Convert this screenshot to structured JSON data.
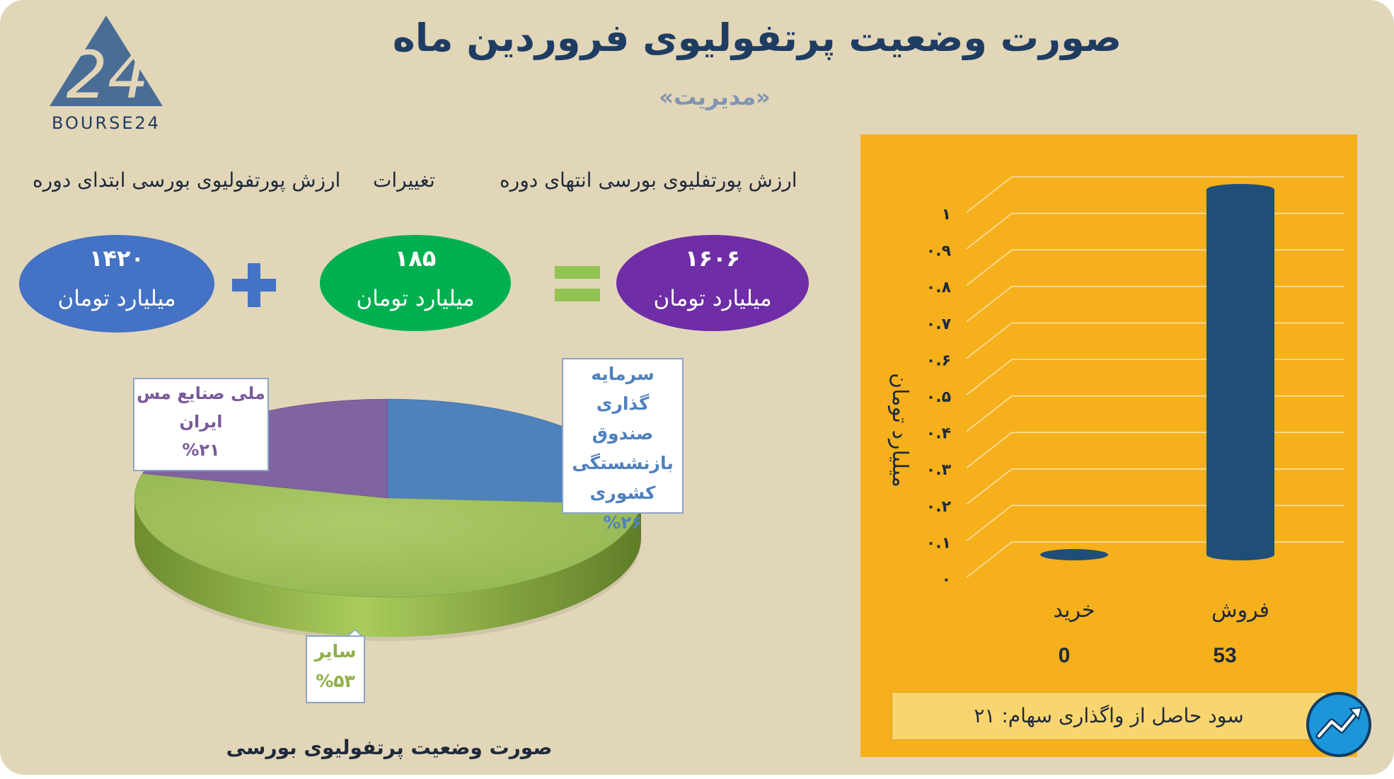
{
  "header": {
    "title": "صورت وضعیت پرتفولیوی فروردین ماه",
    "subtitle": "«مدیریت»"
  },
  "logo": {
    "text": "BOURSE24",
    "mark": "24"
  },
  "summary": {
    "labels": {
      "end": "ارزش پورتفلیوی بورسی انتهای دوره",
      "change": "تغییرات",
      "start": "ارزش پورتفولیوی بورسی ابتدای دوره"
    },
    "end": {
      "value": "۱۶۰۶",
      "unit": "میلیارد تومان",
      "color": "#6f2da8"
    },
    "change": {
      "value": "۱۸۵",
      "unit": "میلیارد تومان",
      "color": "#00b050"
    },
    "start": {
      "value": "۱۴۲۰",
      "unit": "میلیارد تومان",
      "color": "#4472c4"
    },
    "operators": {
      "plus_color": "#4472c4",
      "equals_color": "#92c353"
    }
  },
  "pie": {
    "caption": "صورت وضعیت پرتفولیوی بورسی",
    "callouts": {
      "copper": [
        "ملی صنایع مس",
        "ایران",
        "%۲۱"
      ],
      "pension": [
        "سرمایه گذاری",
        "صندوق",
        "بازنشستگی",
        "کشوری",
        "%۲۶"
      ],
      "other": [
        "سایر",
        "%۵۳"
      ]
    }
  },
  "chart_data": [
    {
      "type": "pie",
      "title": "صورت وضعیت پرتفولیوی بورسی",
      "slices": [
        {
          "label": "سرمایه گذاری صندوق بازنشستگی کشوری",
          "value": 26,
          "color": "#4f81bd"
        },
        {
          "label": "سایر",
          "value": 53,
          "color": "#9bbb59"
        },
        {
          "label": "ملی صنایع مس ایران",
          "value": 21,
          "color": "#8064a2"
        }
      ]
    },
    {
      "type": "bar",
      "title": "",
      "categories": [
        "خرید",
        "فروش"
      ],
      "values": [
        0,
        53
      ],
      "value_labels": [
        "0",
        "53"
      ],
      "ylabel": "میلیارد تومان",
      "ylim": [
        0,
        1
      ],
      "yticks": [
        "۰",
        "۰.۱",
        "۰.۲",
        "۰.۳",
        "۰.۴",
        "۰.۵",
        "۰.۶",
        "۰.۷",
        "۰.۸",
        "۰.۹",
        "۱"
      ],
      "grid": true,
      "bar_color": "#1f4e79"
    }
  ],
  "profit_box": {
    "text": "سود حاصل از واگذاری سهام: ۲۱"
  }
}
